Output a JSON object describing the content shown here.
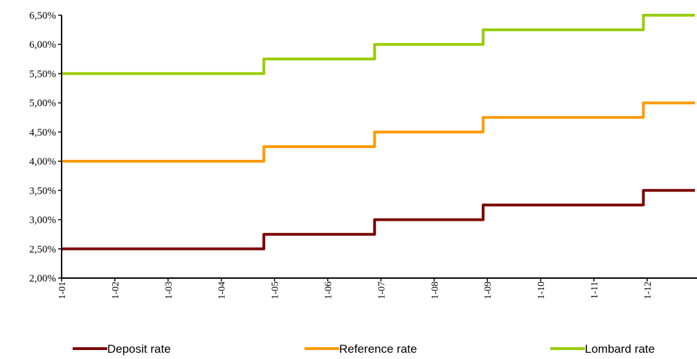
{
  "chart_data": {
    "type": "line",
    "step": true,
    "x_ticks": [
      "1-01",
      "1-02",
      "1-03",
      "1-04",
      "1-05",
      "1-06",
      "1-07",
      "1-08",
      "1-09",
      "1-10",
      "1-11",
      "1-12"
    ],
    "y_ticks": [
      "2,00%",
      "2,50%",
      "3,00%",
      "3,50%",
      "4,00%",
      "4,50%",
      "5,00%",
      "5,50%",
      "6,00%",
      "6,50%"
    ],
    "ylim": [
      2.0,
      6.5
    ],
    "xlim": [
      1,
      12.9
    ],
    "grid": false,
    "legend_position": "bottom",
    "series": [
      {
        "name": "Deposit rate",
        "color": "#7b0000",
        "points": [
          [
            1,
            2.5
          ],
          [
            4.8,
            2.5
          ],
          [
            4.8,
            2.75
          ],
          [
            6.88,
            2.75
          ],
          [
            6.88,
            3.0
          ],
          [
            8.92,
            3.0
          ],
          [
            8.92,
            3.25
          ],
          [
            11.93,
            3.25
          ],
          [
            11.93,
            3.5
          ],
          [
            12.9,
            3.5
          ]
        ]
      },
      {
        "name": "Reference rate",
        "color": "#ff9900",
        "points": [
          [
            1,
            4.0
          ],
          [
            4.8,
            4.0
          ],
          [
            4.8,
            4.25
          ],
          [
            6.88,
            4.25
          ],
          [
            6.88,
            4.5
          ],
          [
            8.92,
            4.5
          ],
          [
            8.92,
            4.75
          ],
          [
            11.93,
            4.75
          ],
          [
            11.93,
            5.0
          ],
          [
            12.9,
            5.0
          ]
        ]
      },
      {
        "name": "Lombard rate",
        "color": "#99cc00",
        "points": [
          [
            1,
            5.5
          ],
          [
            4.8,
            5.5
          ],
          [
            4.8,
            5.75
          ],
          [
            6.88,
            5.75
          ],
          [
            6.88,
            6.0
          ],
          [
            8.92,
            6.0
          ],
          [
            8.92,
            6.25
          ],
          [
            11.93,
            6.25
          ],
          [
            11.93,
            6.5
          ],
          [
            12.9,
            6.5
          ]
        ]
      }
    ]
  }
}
